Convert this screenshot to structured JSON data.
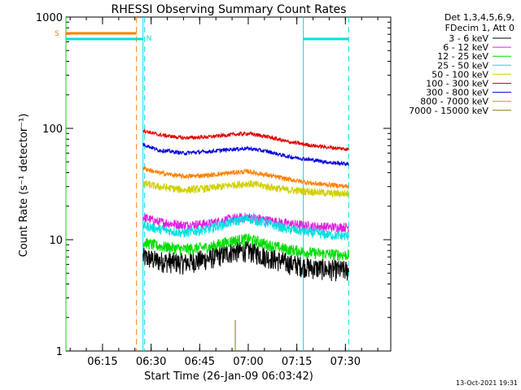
{
  "chart_data": {
    "type": "line",
    "title": "RHESSI Observing Summary Count Rates",
    "xlabel": "Start Time (26-Jan-09 06:03:42)",
    "ylabel": "Count Rate (s⁻¹ detector⁻¹)",
    "ylog": true,
    "xlim": [
      "06:03:42",
      "07:44:00"
    ],
    "ylim": [
      1,
      1000
    ],
    "x_ticks": [
      "06:15",
      "06:30",
      "06:45",
      "07:00",
      "07:15",
      "07:30"
    ],
    "y_ticks": [
      "1",
      "10",
      "100",
      "1000"
    ],
    "legend_header": [
      "Det 1,3,4,5,6,9,",
      "FDecim 1, Att 0"
    ],
    "legend_position": "right",
    "timestamp": "13-Oct-2021 19:31",
    "series": [
      {
        "name": "3 - 6 keV",
        "color": "#000000",
        "start": "06:27:30",
        "end": "07:31:00",
        "x": [
          "06:27:30",
          "06:32",
          "06:40",
          "06:48",
          "06:55",
          "07:00",
          "07:06",
          "07:12",
          "07:20",
          "07:26",
          "07:31"
        ],
        "values": [
          7.0,
          6.5,
          6.2,
          6.8,
          7.8,
          8.0,
          7.0,
          6.2,
          5.6,
          5.4,
          5.3
        ]
      },
      {
        "name": "6 - 12 keV",
        "color": "#e020e0",
        "start": "06:27:30",
        "end": "07:31:00",
        "x": [
          "06:27:30",
          "06:32",
          "06:40",
          "06:48",
          "06:55",
          "07:00",
          "07:06",
          "07:12",
          "07:20",
          "07:26",
          "07:31"
        ],
        "values": [
          16.0,
          14.5,
          13.5,
          14.0,
          15.5,
          16.0,
          15.0,
          14.0,
          13.2,
          13.0,
          13.0
        ]
      },
      {
        "name": "12 - 25 keV",
        "color": "#00dd00",
        "start": "06:27:30",
        "end": "07:31:00",
        "x": [
          "06:27:30",
          "06:32",
          "06:40",
          "06:48",
          "06:55",
          "07:00",
          "07:06",
          "07:12",
          "07:20",
          "07:26",
          "07:31"
        ],
        "values": [
          9.5,
          8.8,
          8.2,
          8.6,
          9.8,
          10.2,
          9.0,
          8.2,
          7.6,
          7.4,
          7.3
        ]
      },
      {
        "name": "25 - 50 keV",
        "color": "#00e0e0",
        "start": "06:27:30",
        "end": "07:31:00",
        "x": [
          "06:27:30",
          "06:32",
          "06:40",
          "06:48",
          "06:55",
          "07:00",
          "07:06",
          "07:12",
          "07:20",
          "07:26",
          "07:31"
        ],
        "values": [
          13.5,
          12.5,
          11.5,
          12.5,
          14.5,
          15.5,
          14.0,
          12.5,
          11.5,
          11.0,
          10.8
        ]
      },
      {
        "name": "50 - 100 keV",
        "color": "#d0d000",
        "start": "06:27:30",
        "end": "07:31:00",
        "x": [
          "06:27:30",
          "06:32",
          "06:40",
          "06:48",
          "06:55",
          "07:00",
          "07:06",
          "07:12",
          "07:20",
          "07:26",
          "07:31"
        ],
        "values": [
          32,
          30,
          28,
          29,
          31,
          32,
          30,
          28,
          27,
          26,
          26
        ]
      },
      {
        "name": "100 - 300 keV",
        "color": "#e00000",
        "start": "06:27:30",
        "end": "07:31:00",
        "x": [
          "06:27:30",
          "06:32",
          "06:40",
          "06:48",
          "06:55",
          "07:00",
          "07:06",
          "07:12",
          "07:20",
          "07:26",
          "07:31"
        ],
        "values": [
          96,
          88,
          82,
          84,
          88,
          90,
          84,
          76,
          70,
          67,
          65
        ]
      },
      {
        "name": "300 - 800 keV",
        "color": "#0000e0",
        "start": "06:27:30",
        "end": "07:31:00",
        "x": [
          "06:27:30",
          "06:32",
          "06:40",
          "06:48",
          "06:55",
          "07:00",
          "07:06",
          "07:12",
          "07:20",
          "07:26",
          "07:31"
        ],
        "values": [
          72,
          64,
          60,
          62,
          65,
          66,
          62,
          56,
          52,
          49,
          48
        ]
      },
      {
        "name": "800 - 7000 keV",
        "color": "#ff8000",
        "start": "06:27:30",
        "end": "07:31:00",
        "x": [
          "06:27:30",
          "06:32",
          "06:40",
          "06:48",
          "06:55",
          "07:00",
          "07:06",
          "07:12",
          "07:20",
          "07:26",
          "07:31"
        ],
        "values": [
          44,
          40,
          37,
          38,
          40,
          41,
          38,
          35,
          32,
          31,
          30
        ]
      },
      {
        "name": "7000 - 15000 keV",
        "color": "#808000",
        "start": "06:50:00",
        "end": "07:05:00",
        "x": [
          "06:55:00",
          "06:56:00",
          "06:57:00"
        ],
        "values": [
          1.0,
          1.9,
          1.0
        ]
      }
    ],
    "flags": [
      {
        "label": "S",
        "color": "#ff8000",
        "start": "06:03:42",
        "end": "06:25:30"
      },
      {
        "label": "N",
        "color": "#00e0e0",
        "start": "06:03:42",
        "end": "06:27:30"
      },
      {
        "label": "",
        "color": "#00e0e0",
        "start": "07:17:00",
        "end": "07:31:00"
      }
    ],
    "vlines": [
      {
        "time": "06:25:30",
        "color": "#ff8000",
        "style": "dashed"
      },
      {
        "time": "06:28:00",
        "color": "#00e0e0",
        "style": "dashed"
      },
      {
        "time": "06:27:30",
        "color": "#00e0e0",
        "style": "solid"
      },
      {
        "time": "07:17:00",
        "color": "#00e0e0",
        "style": "solid"
      },
      {
        "time": "07:31:00",
        "color": "#00e0e0",
        "style": "dashed"
      },
      {
        "time": "06:03:42",
        "color": "#00dd00",
        "style": "solid"
      }
    ]
  }
}
